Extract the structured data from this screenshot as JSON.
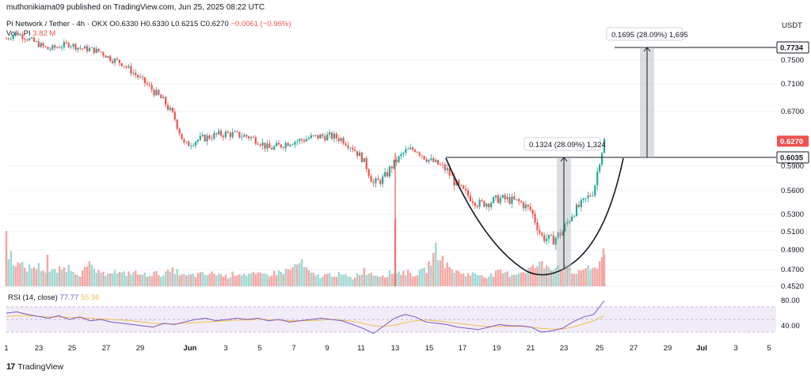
{
  "header": {
    "publisher": "muthonikiama09 published on TradingView.com, Jun 25, 2025 08:22 UTC",
    "symbol": "Pi Network / Tether · 4h · OKX",
    "ohlc_o": "O0.6330",
    "ohlc_h": "H0.6330",
    "ohlc_l": "L0.6215",
    "ohlc_c": "C0.6270",
    "change": "−0.0061 (−0.96%)",
    "vol_label": "Vol · PI",
    "vol_value": "3.82 M",
    "currency": "USDT"
  },
  "rsi_legend": {
    "label": "RSI (14, close)",
    "value1": "77.77",
    "value2": "55.96"
  },
  "brand": "TradingView",
  "colors": {
    "up": "#26a69a",
    "down": "#ef5350",
    "rsi": "#7e57c2",
    "rsi_ma": "#f0c24d",
    "rsi_band": "#ede7f6"
  },
  "measures": [
    {
      "label": "0.1695 (28.09%) 1,695"
    },
    {
      "label": "0.1324 (28.09%) 1,324"
    }
  ],
  "chart_data": {
    "type": "candlestick",
    "title": "Pi Network / Tether · 4h · OKX",
    "price_ticks": [
      "0.7500",
      "0.7100",
      "0.6700",
      "0.5900",
      "0.5600",
      "0.5300",
      "0.5100",
      "0.4900",
      "0.4700",
      "0.4520"
    ],
    "price_tick_values": [
      0.75,
      0.71,
      0.67,
      0.59,
      0.56,
      0.53,
      0.51,
      0.49,
      0.47,
      0.452
    ],
    "price_badges": [
      {
        "label": "0.7734",
        "value": 0.7734,
        "style": "dark"
      },
      {
        "label": "0.6270",
        "value": 0.627,
        "style": "red"
      },
      {
        "label": "0.6035",
        "value": 0.6035,
        "style": "dark"
      }
    ],
    "rsi_ticks": [
      "80.00",
      "40.00"
    ],
    "rsi_tick_values": [
      80,
      40
    ],
    "x_ticks": [
      "1",
      "23",
      "25",
      "27",
      "29",
      "Jun",
      "3",
      "5",
      "7",
      "9",
      "11",
      "13",
      "15",
      "17",
      "19",
      "21",
      "23",
      "25",
      "27",
      "29",
      "Jul",
      "3",
      "5"
    ],
    "x_tick_index": [
      0,
      22,
      24,
      26,
      28,
      30,
      32,
      34,
      36,
      38,
      40,
      42,
      44,
      46,
      48,
      50,
      52,
      54,
      56,
      58,
      60,
      62,
      64
    ],
    "key_close_path": [
      [
        0,
        0.79
      ],
      [
        1,
        0.8
      ],
      [
        2,
        0.79
      ],
      [
        3,
        0.78
      ],
      [
        4,
        0.77
      ],
      [
        5,
        0.775
      ],
      [
        6,
        0.78
      ],
      [
        7,
        0.772
      ],
      [
        8,
        0.77
      ],
      [
        9,
        0.765
      ],
      [
        10,
        0.752
      ],
      [
        11,
        0.745
      ],
      [
        12,
        0.73
      ],
      [
        13,
        0.715
      ],
      [
        14,
        0.7
      ],
      [
        15,
        0.685
      ],
      [
        16,
        0.662
      ],
      [
        17,
        0.62
      ],
      [
        18,
        0.628
      ],
      [
        19,
        0.632
      ],
      [
        20,
        0.636
      ],
      [
        21,
        0.638
      ],
      [
        22,
        0.636
      ],
      [
        23,
        0.634
      ],
      [
        24,
        0.628
      ],
      [
        25,
        0.616
      ],
      [
        26,
        0.62
      ],
      [
        27,
        0.626
      ],
      [
        28,
        0.628
      ],
      [
        29,
        0.632
      ],
      [
        30,
        0.634
      ],
      [
        31,
        0.634
      ],
      [
        32,
        0.63
      ],
      [
        33,
        0.618
      ],
      [
        34,
        0.6
      ],
      [
        35,
        0.568
      ],
      [
        36,
        0.575
      ],
      [
        37,
        0.595
      ],
      [
        38,
        0.612
      ],
      [
        39,
        0.616
      ],
      [
        40,
        0.602
      ],
      [
        41,
        0.594
      ],
      [
        42,
        0.585
      ],
      [
        43,
        0.565
      ],
      [
        44,
        0.554
      ],
      [
        45,
        0.543
      ],
      [
        46,
        0.545
      ],
      [
        47,
        0.55
      ],
      [
        48,
        0.548
      ],
      [
        49,
        0.545
      ],
      [
        50,
        0.535
      ],
      [
        51,
        0.505
      ],
      [
        52,
        0.5
      ],
      [
        53,
        0.51
      ],
      [
        54,
        0.532
      ],
      [
        55,
        0.545
      ],
      [
        56,
        0.56
      ],
      [
        57,
        0.628
      ]
    ],
    "vol_fraction": [
      0.92,
      0.55,
      0.45,
      0.5,
      0.35,
      0.4,
      0.48,
      0.3,
      0.52,
      0.28,
      0.4,
      0.3,
      0.35,
      0.28,
      0.32,
      0.3,
      0.4,
      0.25,
      0.28,
      0.3,
      0.32,
      0.24,
      0.34,
      0.3,
      0.28,
      0.3,
      0.35,
      0.4,
      0.6,
      0.3,
      0.25,
      0.3,
      0.28,
      0.2,
      0.4,
      0.3,
      0.28,
      0.35,
      0.35,
      0.3,
      0.4,
      0.92,
      0.5,
      0.35,
      0.3,
      0.3,
      0.25,
      0.35,
      0.3,
      0.35,
      0.45,
      0.55,
      0.5,
      0.5,
      0.3,
      0.45,
      0.4,
      0.8
    ],
    "rsi_values": [
      60,
      62,
      58,
      55,
      52,
      56,
      50,
      54,
      48,
      50,
      46,
      44,
      42,
      40,
      38,
      44,
      42,
      46,
      50,
      52,
      48,
      50,
      52,
      50,
      52,
      48,
      50,
      46,
      48,
      50,
      52,
      50,
      48,
      42,
      36,
      28,
      40,
      52,
      58,
      54,
      46,
      44,
      42,
      38,
      36,
      34,
      38,
      42,
      40,
      40,
      38,
      30,
      32,
      36,
      46,
      54,
      58,
      80
    ],
    "rsi_ma_values": [
      55,
      56,
      56,
      55,
      54,
      54,
      53,
      53,
      52,
      51,
      50,
      49,
      48,
      46,
      44,
      43,
      43,
      44,
      45,
      46,
      47,
      48,
      49,
      49,
      50,
      50,
      49,
      48,
      48,
      48,
      49,
      50,
      49,
      47,
      44,
      40,
      39,
      41,
      45,
      48,
      49,
      48,
      46,
      44,
      42,
      40,
      39,
      39,
      39,
      39,
      38,
      36,
      35,
      35,
      38,
      43,
      48,
      56
    ],
    "ylim": [
      0.452,
      0.79
    ],
    "rsi_ylim": [
      20,
      90
    ]
  }
}
